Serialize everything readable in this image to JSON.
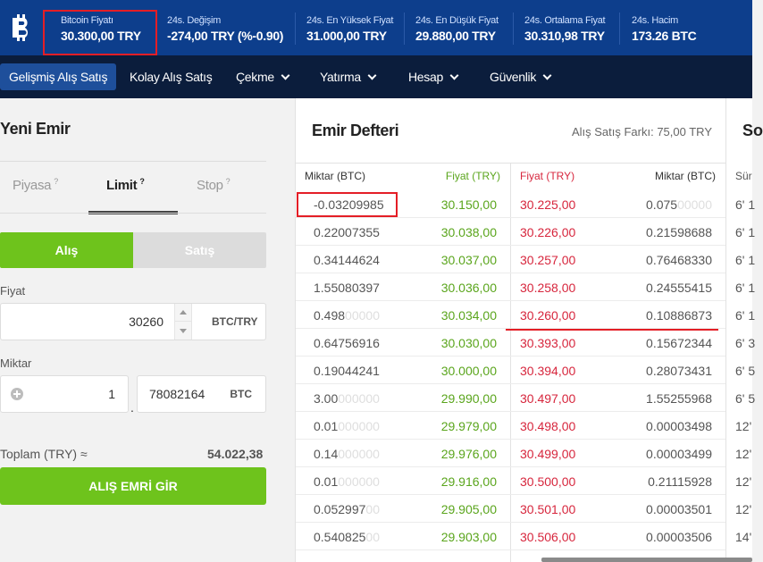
{
  "ticker": {
    "logo": "bitcoin-logo",
    "items": [
      {
        "label": "Bitcoin Fiyatı",
        "value": "30.300,00 TRY"
      },
      {
        "label": "24s. Değişim",
        "value": "-274,00 TRY (%-0.90)"
      },
      {
        "label": "24s. En Yüksek Fiyat",
        "value": "31.000,00 TRY"
      },
      {
        "label": "24s. En Düşük Fiyat",
        "value": "29.880,00 TRY"
      },
      {
        "label": "24s. Ortalama Fiyat",
        "value": "30.310,98 TRY"
      },
      {
        "label": "24s. Hacim",
        "value": "173.26 BTC"
      }
    ]
  },
  "nav": {
    "items": [
      {
        "label": "Gelişmiş Alış Satış",
        "active": true
      },
      {
        "label": "Kolay Alış Satış"
      },
      {
        "label": "Çekme",
        "dropdown": true
      },
      {
        "label": "Yatırma",
        "dropdown": true
      },
      {
        "label": "Hesap",
        "dropdown": true
      },
      {
        "label": "Güvenlik",
        "dropdown": true
      }
    ]
  },
  "order_form": {
    "title": "Yeni Emir",
    "tabs": [
      {
        "label": "Piyasa",
        "help": "?"
      },
      {
        "label": "Limit",
        "help": "?",
        "active": true
      },
      {
        "label": "Stop",
        "help": "?"
      }
    ],
    "side_buy": "Alış",
    "side_sell": "Satış",
    "price_label": "Fiyat",
    "price_value": "30260",
    "price_unit": "BTC/TRY",
    "amount_label": "Miktar",
    "amount_int": "1",
    "amount_dot": ".",
    "amount_frac": "78082164",
    "amount_unit": "BTC",
    "total_label": "Toplam (TRY) ≈",
    "total_value": "54.022,38",
    "submit_label": "ALIŞ EMRİ GİR"
  },
  "order_book": {
    "title": "Emir Defteri",
    "spread": "Alış Satış Farkı: 75,00 TRY",
    "headers": {
      "bid_amount": "Miktar (BTC)",
      "bid_price": "Fiyat (TRY)",
      "ask_price": "Fiyat (TRY)",
      "ask_amount": "Miktar (BTC)"
    },
    "rows": [
      {
        "bid_amount": "-0.03209985",
        "bid_amount_fade": "",
        "bid_price": "30.150,00",
        "ask_price": "30.225,00",
        "ask_amount": "0.075",
        "ask_amount_fade": "00000"
      },
      {
        "bid_amount": "0.22007355",
        "bid_amount_fade": "",
        "bid_price": "30.038,00",
        "ask_price": "30.226,00",
        "ask_amount": "0.21598688",
        "ask_amount_fade": ""
      },
      {
        "bid_amount": "0.34144624",
        "bid_amount_fade": "",
        "bid_price": "30.037,00",
        "ask_price": "30.257,00",
        "ask_amount": "0.76468330",
        "ask_amount_fade": ""
      },
      {
        "bid_amount": "1.55080397",
        "bid_amount_fade": "",
        "bid_price": "30.036,00",
        "ask_price": "30.258,00",
        "ask_amount": "0.24555415",
        "ask_amount_fade": ""
      },
      {
        "bid_amount": "0.498",
        "bid_amount_fade": "00000",
        "bid_price": "30.034,00",
        "ask_price": "30.260,00",
        "ask_amount": "0.10886873",
        "ask_amount_fade": ""
      },
      {
        "bid_amount": "0.64756916",
        "bid_amount_fade": "",
        "bid_price": "30.030,00",
        "ask_price": "30.393,00",
        "ask_amount": "0.15672344",
        "ask_amount_fade": ""
      },
      {
        "bid_amount": "0.19044241",
        "bid_amount_fade": "",
        "bid_price": "30.000,00",
        "ask_price": "30.394,00",
        "ask_amount": "0.28073431",
        "ask_amount_fade": ""
      },
      {
        "bid_amount": "3.00",
        "bid_amount_fade": "000000",
        "bid_price": "29.990,00",
        "ask_price": "30.497,00",
        "ask_amount": "1.55255968",
        "ask_amount_fade": ""
      },
      {
        "bid_amount": "0.01",
        "bid_amount_fade": "000000",
        "bid_price": "29.979,00",
        "ask_price": "30.498,00",
        "ask_amount": "0.00003498",
        "ask_amount_fade": ""
      },
      {
        "bid_amount": "0.14",
        "bid_amount_fade": "000000",
        "bid_price": "29.976,00",
        "ask_price": "30.499,00",
        "ask_amount": "0.00003499",
        "ask_amount_fade": ""
      },
      {
        "bid_amount": "0.01",
        "bid_amount_fade": "000000",
        "bid_price": "29.916,00",
        "ask_price": "30.500,00",
        "ask_amount": "0.21115928",
        "ask_amount_fade": ""
      },
      {
        "bid_amount": "0.052997",
        "bid_amount_fade": "00",
        "bid_price": "29.905,00",
        "ask_price": "30.501,00",
        "ask_amount": "0.00003501",
        "ask_amount_fade": ""
      },
      {
        "bid_amount": "0.540825",
        "bid_amount_fade": "00",
        "bid_price": "29.903,00",
        "ask_price": "30.506,00",
        "ask_amount": "0.00003506",
        "ask_amount_fade": ""
      }
    ]
  },
  "trades_panel": {
    "title": "So",
    "header": "Sür",
    "times": [
      "6' 1",
      "6' 1",
      "6' 1",
      "6' 1",
      "6' 1",
      "6' 3",
      "6' 5",
      "6' 5",
      "12'",
      "12'",
      "12'",
      "12'",
      "14'"
    ]
  }
}
